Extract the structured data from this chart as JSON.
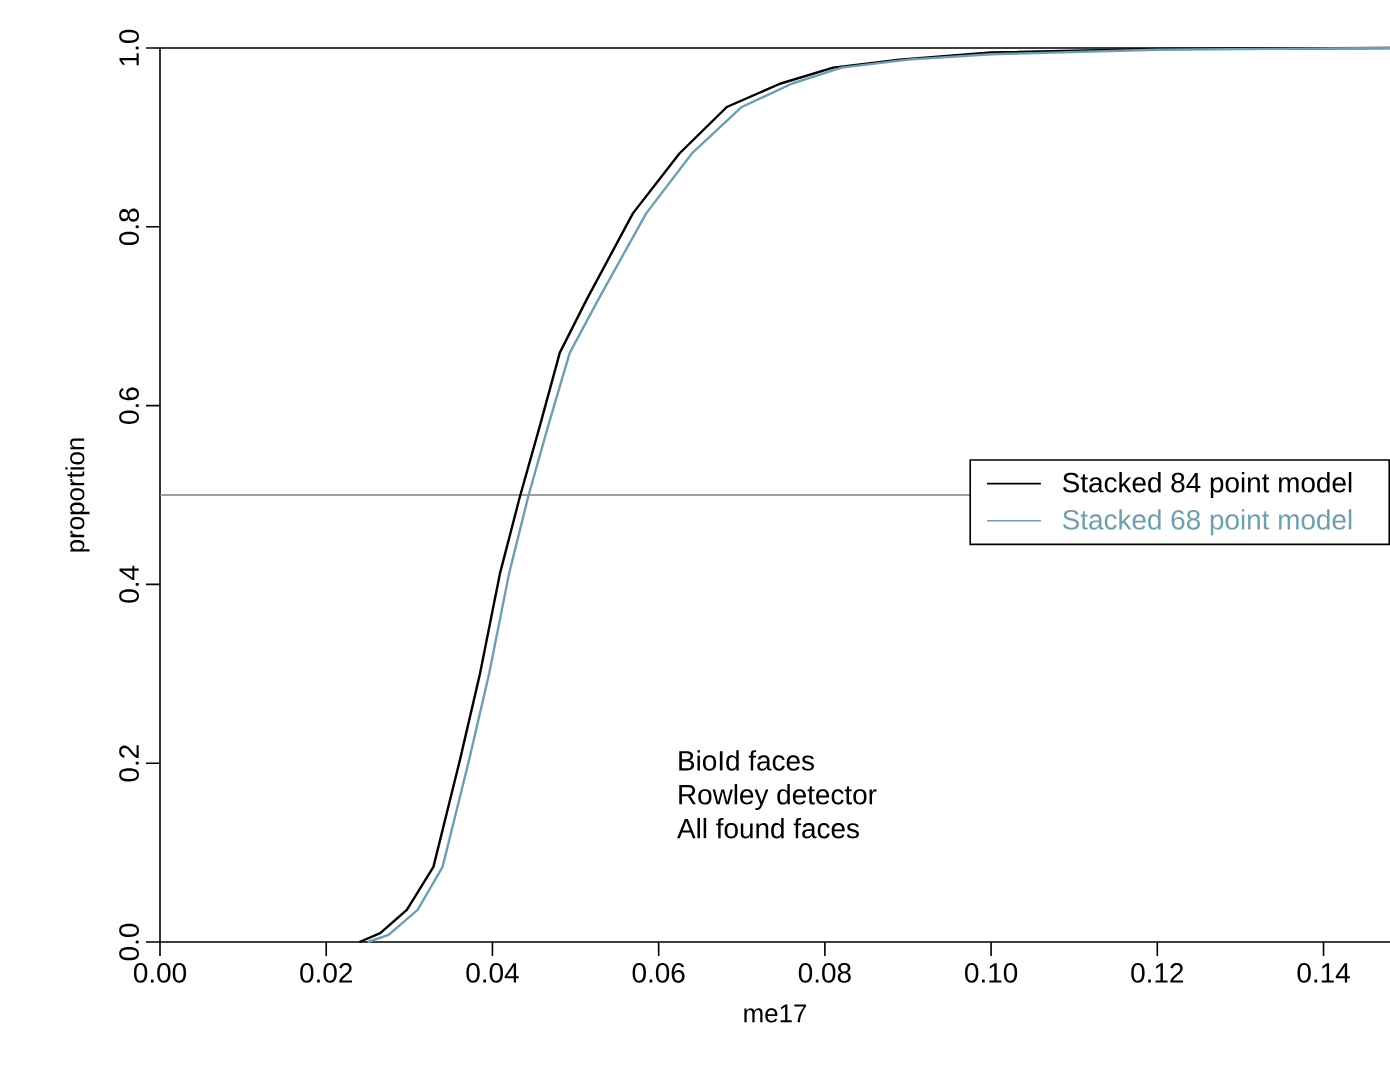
{
  "chart_data": {
    "type": "line",
    "xlabel": "me17",
    "ylabel": "proportion",
    "xlim": [
      0,
      0.148
    ],
    "ylim": [
      0,
      1
    ],
    "xticks": [
      {
        "value": 0,
        "label": "0.00"
      },
      {
        "value": 0.02,
        "label": "0.02"
      },
      {
        "value": 0.04,
        "label": "0.04"
      },
      {
        "value": 0.06,
        "label": "0.06"
      },
      {
        "value": 0.08,
        "label": "0.08"
      },
      {
        "value": 0.1,
        "label": "0.10"
      },
      {
        "value": 0.12,
        "label": "0.12"
      },
      {
        "value": 0.14,
        "label": "0.14"
      }
    ],
    "yticks": [
      {
        "value": 0,
        "label": "0.0"
      },
      {
        "value": 0.2,
        "label": "0.2"
      },
      {
        "value": 0.4,
        "label": "0.4"
      },
      {
        "value": 0.6,
        "label": "0.6"
      },
      {
        "value": 0.8,
        "label": "0.8"
      },
      {
        "value": 1,
        "label": "1.0"
      }
    ],
    "grid": false,
    "legend": "right",
    "marker": "none",
    "line_style": "solid",
    "ref_lines": [
      {
        "axis": "y",
        "value": 1,
        "color": "#000000"
      },
      {
        "axis": "y",
        "value": 0.5,
        "color": "#808080"
      }
    ],
    "series": [
      {
        "name": "Stacked 84 point model",
        "color": "#000000",
        "x": [
          0.024,
          0.0265,
          0.0297,
          0.0329,
          0.0361,
          0.0385,
          0.0409,
          0.0433,
          0.0457,
          0.0481,
          0.0513,
          0.0569,
          0.0625,
          0.0682,
          0.0746,
          0.081,
          0.089,
          0.1,
          0.12,
          0.148
        ],
        "values": [
          0,
          0.01,
          0.036,
          0.084,
          0.204,
          0.3,
          0.412,
          0.498,
          0.577,
          0.659,
          0.718,
          0.815,
          0.882,
          0.934,
          0.96,
          0.978,
          0.987,
          0.995,
          0.999,
          1
        ]
      },
      {
        "name": "Stacked 68 point model",
        "color": "#6f9faf",
        "x": [
          0.025,
          0.0275,
          0.031,
          0.034,
          0.0372,
          0.0396,
          0.042,
          0.0443,
          0.0467,
          0.0493,
          0.0527,
          0.0585,
          0.064,
          0.07,
          0.076,
          0.082,
          0.09,
          0.1,
          0.12,
          0.148
        ],
        "values": [
          0,
          0.008,
          0.036,
          0.084,
          0.204,
          0.3,
          0.412,
          0.498,
          0.577,
          0.659,
          0.718,
          0.815,
          0.882,
          0.934,
          0.96,
          0.978,
          0.987,
          0.993,
          0.998,
          1
        ]
      }
    ],
    "annotations": [
      "BioId faces",
      "Rowley detector",
      "All found faces"
    ]
  }
}
